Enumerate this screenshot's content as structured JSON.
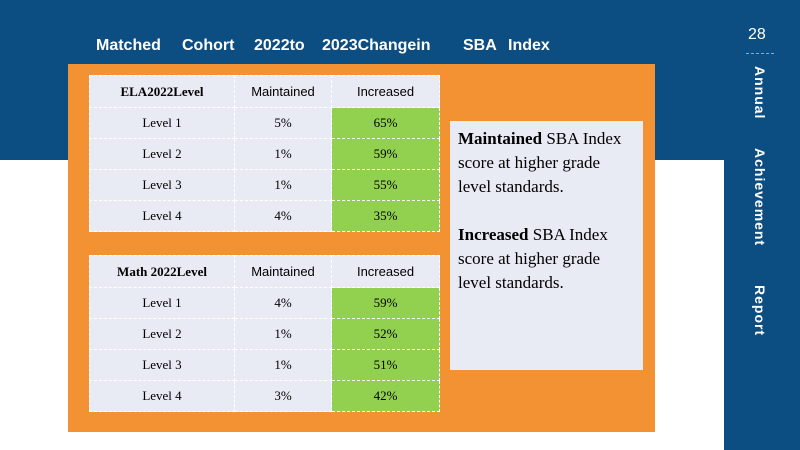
{
  "title": {
    "w1": "Matched",
    "w2": "Cohort",
    "w3": "2022to",
    "w4": "2023Changein",
    "w5": "SBA",
    "w6": "Index"
  },
  "page_number": "28",
  "side_title": {
    "w1": "Annual",
    "w2": "Achievement",
    "w3": "Report"
  },
  "ela_table": {
    "headers": [
      "ELA2022Level",
      "Maintained",
      "Increased"
    ],
    "rows": [
      [
        "Level 1",
        "5%",
        "65%"
      ],
      [
        "Level 2",
        "1%",
        "59%"
      ],
      [
        "Level 3",
        "1%",
        "55%"
      ],
      [
        "Level 4",
        "4%",
        "35%"
      ]
    ]
  },
  "math_table": {
    "headers": [
      "Math 2022Level",
      "Maintained",
      "Increased"
    ],
    "rows": [
      [
        "Level 1",
        "4%",
        "59%"
      ],
      [
        "Level 2",
        "1%",
        "52%"
      ],
      [
        "Level 3",
        "1%",
        "51%"
      ],
      [
        "Level 4",
        "3%",
        "42%"
      ]
    ]
  },
  "notes": {
    "maintained_term": "Maintained",
    "maintained_text": " SBA Index score at higher grade level standards.",
    "increased_term": "Increased",
    "increased_text": " SBA Index score at higher grade level standards."
  },
  "colors": {
    "navy": "#0d4e82",
    "orange": "#f39232",
    "green": "#92d050",
    "panel": "#e8eaf4"
  }
}
